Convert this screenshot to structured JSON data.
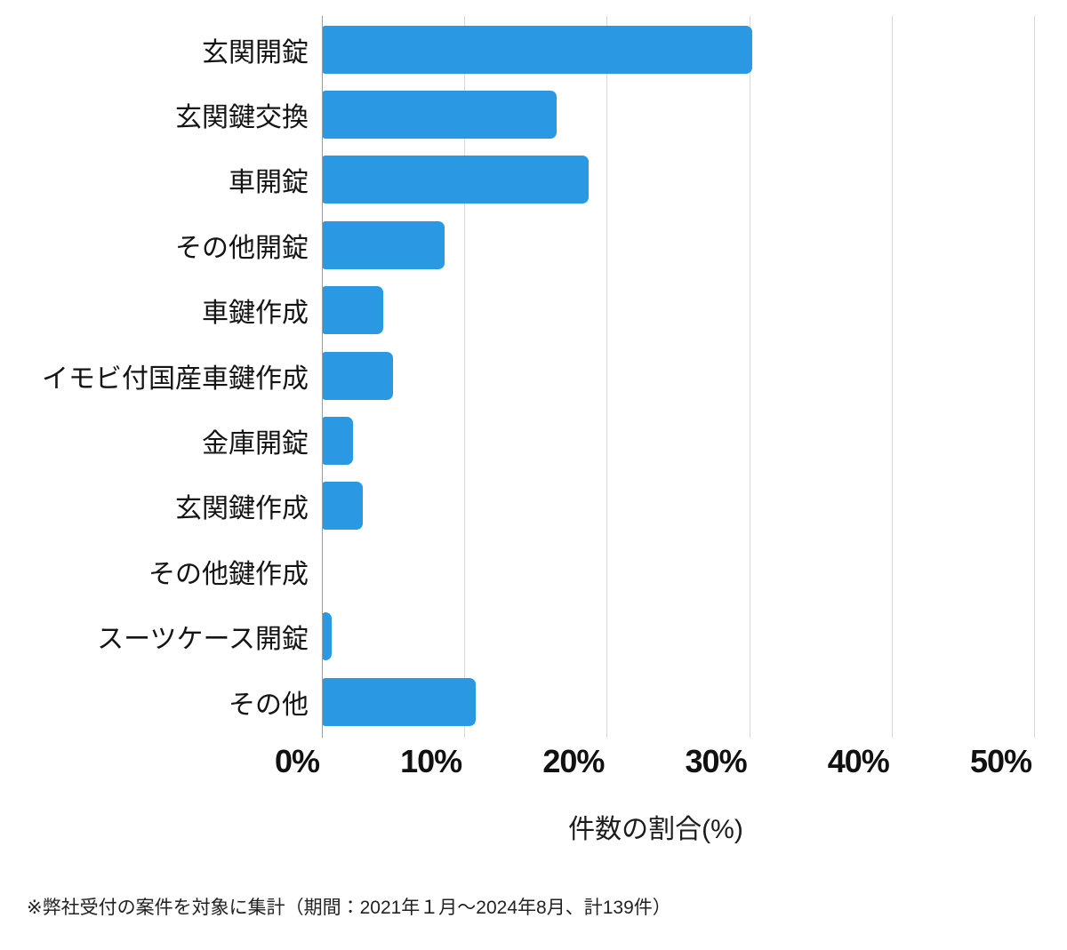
{
  "chart_data": {
    "type": "bar",
    "orientation": "horizontal",
    "categories": [
      "玄関開錠",
      "玄関鍵交換",
      "車開錠",
      "その他開錠",
      "車鍵作成",
      "イモビ付国産車鍵作成",
      "金庫開錠",
      "玄関鍵作成",
      "その他鍵作成",
      "スーツケース開錠",
      "その他"
    ],
    "values": [
      30.2,
      16.5,
      18.7,
      8.6,
      4.3,
      5.0,
      2.2,
      2.9,
      0,
      0.7,
      10.8
    ],
    "title": "",
    "xlabel": "件数の割合(%)",
    "ylabel": "",
    "x_ticks": [
      "0%",
      "10%",
      "20%",
      "30%",
      "40%",
      "50%"
    ],
    "xlim": [
      0,
      50
    ],
    "grid": "vertical",
    "legend": "none",
    "bar_color": "#2b98e4",
    "gridline_color": "#d9d9d9",
    "axis_line_color": "#9c9c9c",
    "footnote": "※弊社受付の案件を対象に集計（期間：2021年１月～2024年8月、計139件）"
  }
}
